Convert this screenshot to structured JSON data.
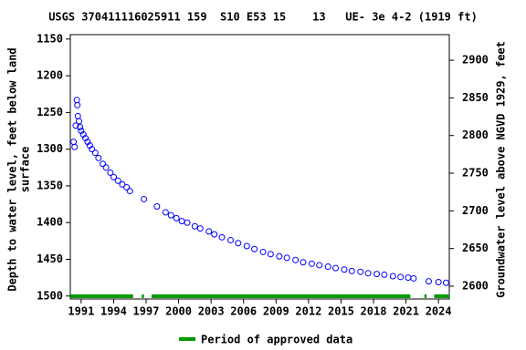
{
  "chart_data": {
    "type": "scatter",
    "title": "USGS 370411116025911 159  S10 E53 15    13   UE- 3e 4-2 (1919 ft)",
    "ylabel": [
      "Depth to water level, feet below land",
      "surface"
    ],
    "y2label": "Groundwater level above NGVD 1929, feet",
    "xlim": [
      1990,
      2025
    ],
    "xticks": [
      1991,
      1994,
      1997,
      2000,
      2003,
      2006,
      2009,
      2012,
      2015,
      2018,
      2021,
      2024
    ],
    "ylim": [
      1144,
      1504
    ],
    "y_inverted": true,
    "yticks": [
      1150,
      1200,
      1250,
      1300,
      1350,
      1400,
      1450,
      1500
    ],
    "y2lim": [
      2583,
      2934
    ],
    "y2ticks": [
      2600,
      2650,
      2700,
      2750,
      2800,
      2850,
      2900
    ],
    "series": [
      {
        "color": "#0000ff",
        "x": [
          1990.3,
          1990.4,
          1990.5,
          1990.6,
          1990.65,
          1990.7,
          1990.8,
          1990.9,
          1991.0,
          1991.2,
          1991.4,
          1991.6,
          1991.8,
          1992.0,
          1992.3,
          1992.6,
          1993.0,
          1993.3,
          1993.7,
          1994.0,
          1994.4,
          1994.8,
          1995.2,
          1995.5,
          1996.8,
          1998.0,
          1998.8,
          1999.3,
          1999.8,
          2000.3,
          2000.8,
          2001.5,
          2002.0,
          2002.8,
          2003.3,
          2004.0,
          2004.8,
          2005.5,
          2006.3,
          2007.0,
          2007.8,
          2008.5,
          2009.3,
          2010.0,
          2010.8,
          2011.5,
          2012.3,
          2013.0,
          2013.8,
          2014.5,
          2015.3,
          2016.0,
          2016.8,
          2017.5,
          2018.3,
          2019.0,
          2019.8,
          2020.5,
          2021.2,
          2021.7,
          2023.1,
          2024.0,
          2024.7
        ],
        "values": [
          1290,
          1297,
          1268,
          1233,
          1240,
          1255,
          1262,
          1270,
          1275,
          1280,
          1285,
          1290,
          1295,
          1300,
          1305,
          1312,
          1320,
          1325,
          1332,
          1338,
          1343,
          1348,
          1352,
          1357,
          1368,
          1378,
          1386,
          1390,
          1394,
          1398,
          1400,
          1405,
          1408,
          1412,
          1416,
          1420,
          1424,
          1428,
          1432,
          1436,
          1440,
          1443,
          1446,
          1448,
          1451,
          1454,
          1456,
          1458,
          1460,
          1462,
          1464,
          1466,
          1467,
          1469,
          1470,
          1471,
          1473,
          1474,
          1475,
          1476,
          1480,
          1481,
          1482
        ]
      }
    ],
    "approved_periods": {
      "name": "Period of approved data",
      "color": "#009900",
      "ranges": [
        [
          1990,
          1995.8
        ],
        [
          1996.6,
          1996.8
        ],
        [
          1997.5,
          2021.4
        ],
        [
          2022.7,
          2022.9
        ],
        [
          2023.6,
          2025
        ]
      ]
    }
  }
}
